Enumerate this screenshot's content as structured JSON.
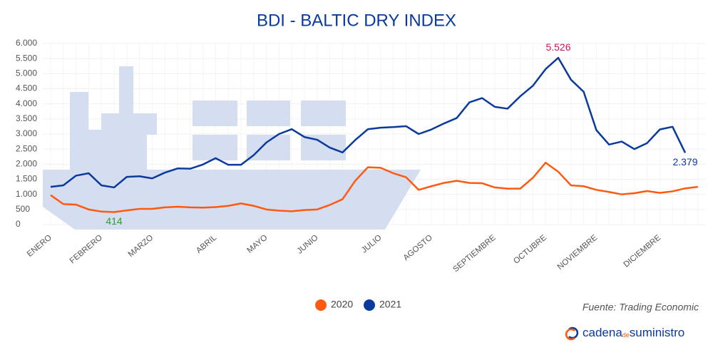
{
  "chart_data": {
    "type": "line",
    "title": "BDI - BALTIC DRY INDEX",
    "source": "Fuente: Trading Economic",
    "brand": {
      "prefix": "cadena",
      "middle": "de",
      "suffix": "suministro"
    },
    "categories": [
      "ENERO",
      null,
      null,
      null,
      "FEBRERO",
      null,
      null,
      null,
      "MARZO",
      null,
      null,
      null,
      null,
      "ABRIL",
      null,
      null,
      null,
      "MAYO",
      null,
      null,
      null,
      "JUNIO",
      null,
      null,
      null,
      null,
      "JULIO",
      null,
      null,
      null,
      "AGOSTO",
      null,
      null,
      null,
      null,
      "SEPTIEMBRE",
      null,
      null,
      null,
      "OCTUBRE",
      null,
      null,
      null,
      "NOVIEMBRE",
      null,
      null,
      null,
      null,
      "DICIEMBRE",
      null,
      null,
      null
    ],
    "series": [
      {
        "name": "2020",
        "color": "#ff5a0f",
        "values": [
          976,
          680,
          660,
          500,
          430,
          414,
          470,
          520,
          520,
          570,
          590,
          570,
          560,
          580,
          620,
          700,
          620,
          500,
          460,
          440,
          480,
          500,
          650,
          840,
          1450,
          1900,
          1880,
          1700,
          1570,
          1150,
          1270,
          1380,
          1450,
          1380,
          1370,
          1230,
          1190,
          1190,
          1550,
          2050,
          1750,
          1300,
          1270,
          1150,
          1080,
          1000,
          1040,
          1110,
          1050,
          1100,
          1200,
          1250
        ]
      },
      {
        "name": "2021",
        "color": "#0a3a9c",
        "values": [
          1250,
          1300,
          1620,
          1700,
          1300,
          1230,
          1580,
          1600,
          1530,
          1720,
          1860,
          1850,
          1990,
          2200,
          1980,
          1980,
          2300,
          2720,
          3000,
          3160,
          2900,
          2810,
          2550,
          2390,
          2800,
          3160,
          3210,
          3230,
          3260,
          3000,
          3150,
          3350,
          3530,
          4050,
          4190,
          3900,
          3840,
          4250,
          4600,
          5150,
          5526,
          4800,
          4400,
          3130,
          2650,
          2750,
          2500,
          2700,
          3150,
          3240,
          2379,
          null
        ]
      }
    ],
    "annotations": [
      {
        "text": "414",
        "color": "#2ca02c",
        "series": 0,
        "index": 5
      },
      {
        "text": "5.526",
        "color": "#c2185b",
        "series": 1,
        "index": 40
      },
      {
        "text": "2.379",
        "color": "#0a3a9c",
        "series": 1,
        "index": 50
      }
    ],
    "ylim": [
      0,
      6000
    ],
    "yticks": [
      0,
      500,
      {
        "value": 1000,
        "label": "1.000"
      },
      {
        "value": 1500,
        "label": "1.500"
      },
      {
        "value": 2000,
        "label": "2.000"
      },
      {
        "value": 2500,
        "label": "2.500"
      },
      {
        "value": 3000,
        "label": "3.000"
      },
      {
        "value": 3500,
        "label": "3.500"
      },
      {
        "value": 4000,
        "label": "4.000"
      },
      {
        "value": 4500,
        "label": "4.500"
      },
      {
        "value": 5000,
        "label": "5.000"
      },
      {
        "value": 5500,
        "label": "5.500"
      },
      {
        "value": 6000,
        "label": "6.000"
      }
    ],
    "grid": true,
    "legend": "bottom"
  }
}
